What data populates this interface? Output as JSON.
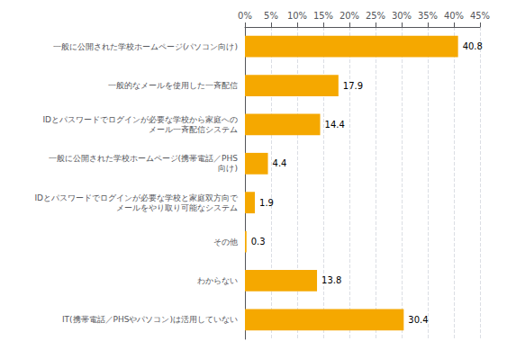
{
  "chart_data": {
    "type": "bar",
    "orientation": "horizontal",
    "categories": [
      "IT(携帯電話／PHSやパソコン)は活用していない",
      "わからない",
      "その他",
      "IDとパスワードでログインが必要な学校と家庭双方向で\nメールをやり取り可能なシステム",
      "一般に公開された学校ホームページ(携帯電話／PHS\n向け)",
      "IDとパスワードでログインが必要な学校から家庭への\nメール一斉配信システム",
      "一般的なメールを使用した一斉配信",
      "一般に公開された学校ホームページ(パソコン向け)"
    ],
    "values": [
      30.4,
      13.8,
      0.3,
      1.9,
      4.4,
      14.4,
      17.9,
      40.8
    ],
    "value_labels": [
      "30.4",
      "13.8",
      "0.3",
      "1.9",
      "4.4",
      "14.4",
      "17.9",
      "40.8"
    ],
    "data_labels": true,
    "color": "#F5A800",
    "xlim": [
      0,
      45
    ],
    "xticks": [
      {
        "value": 0,
        "label": "0%"
      },
      {
        "value": 5,
        "label": "5%"
      },
      {
        "value": 10,
        "label": "10%"
      },
      {
        "value": 15,
        "label": "15%"
      },
      {
        "value": 20,
        "label": "20%"
      },
      {
        "value": 25,
        "label": "25%"
      },
      {
        "value": 30,
        "label": "30%"
      },
      {
        "value": 35,
        "label": "35%"
      },
      {
        "value": 40,
        "label": "40%"
      },
      {
        "value": 45,
        "label": "45%"
      }
    ],
    "grid": true
  }
}
